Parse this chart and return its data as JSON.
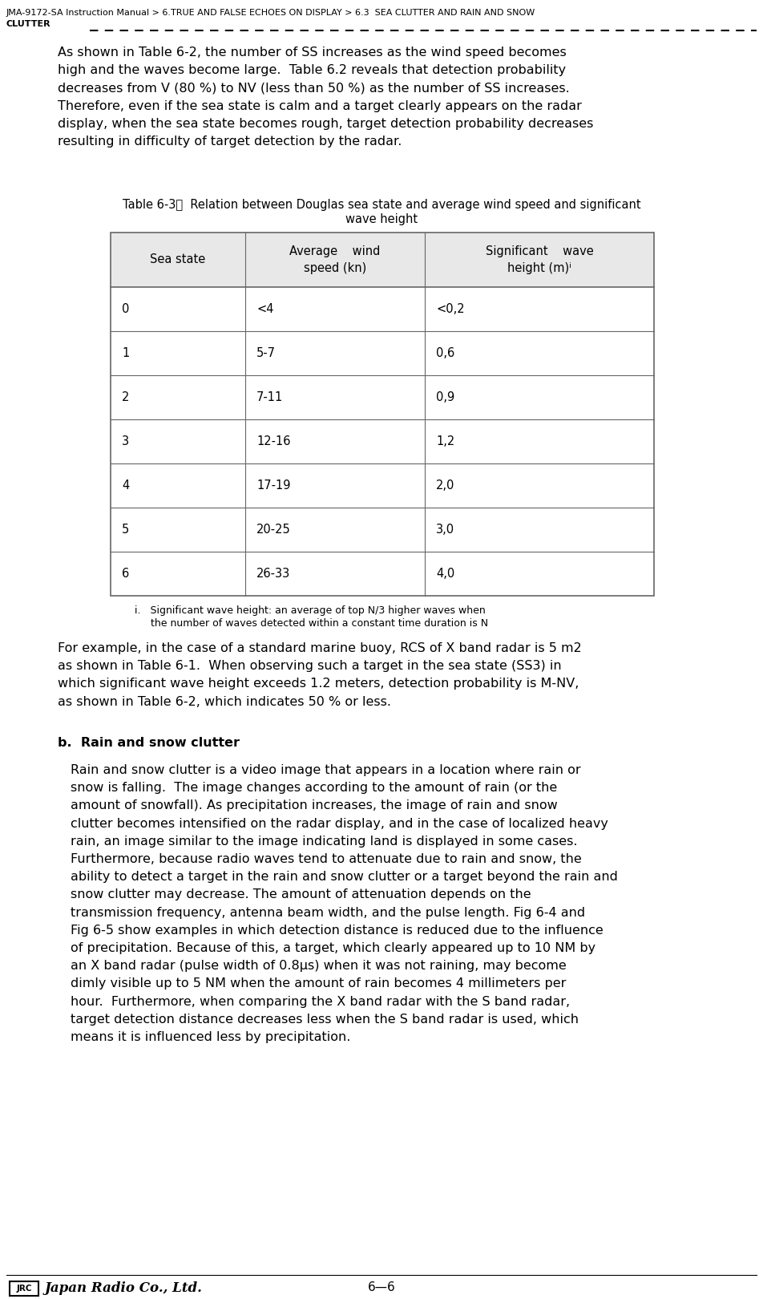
{
  "page_title_line1": "JMA-9172-SA Instruction Manual > 6.TRUE AND FALSE ECHOES ON DISPLAY > 6.3  SEA CLUTTER AND RAIN AND SNOW",
  "page_title_line2": "CLUTTER",
  "para1": "As shown in Table 6-2, the number of SS increases as the wind speed becomes\nhigh and the waves become large.  Table 6.2 reveals that detection probability\ndecreases from V (80 %) to NV (less than 50 %) as the number of SS increases.\nTherefore, even if the sea state is calm and a target clearly appears on the radar\ndisplay, when the sea state becomes rough, target detection probability decreases\nresulting in difficulty of target detection by the radar.",
  "table_title_line1": "Table 6-3：  Relation between Douglas sea state and average wind speed and significant",
  "table_title_line2": "wave height",
  "table_col0_header": "Sea state",
  "table_col1_header": "Average    wind\nspeed (kn)",
  "table_col2_header": "Significant    wave\nheight (m)ⁱ",
  "table_rows": [
    [
      "0",
      "<4",
      "<0,2"
    ],
    [
      "1",
      "5-7",
      "0,6"
    ],
    [
      "2",
      "7-11",
      "0,9"
    ],
    [
      "3",
      "12-16",
      "1,2"
    ],
    [
      "4",
      "17-19",
      "2,0"
    ],
    [
      "5",
      "20-25",
      "3,0"
    ],
    [
      "6",
      "26-33",
      "4,0"
    ]
  ],
  "table_footnote_line1": "i.   Significant wave height: an average of top N/3 higher waves when",
  "table_footnote_line2": "     the number of waves detected within a constant time duration is N",
  "para2": "For example, in the case of a standard marine buoy, RCS of X band radar is 5 m2\nas shown in Table 6-1.  When observing such a target in the sea state (SS3) in\nwhich significant wave height exceeds 1.2 meters, detection probability is M-NV,\nas shown in Table 6-2, which indicates 50 % or less.",
  "section_b_bold": "b.  Rain and snow clutter",
  "para3_line1": "Rain and snow clutter is a video image that appears in a location where rain or",
  "para3_line2": "snow is falling.  The image changes according to the amount of rain (or the",
  "para3_line3": "amount of snowfall). As precipitation increases, the image of rain and snow",
  "para3_line4": "clutter becomes intensified on the radar display, and in the case of localized heavy",
  "para3_line5": "rain, an image similar to the image indicating land is displayed in some cases.",
  "para3_line6": "Furthermore, because radio waves tend to attenuate due to rain and snow, the",
  "para3_line7": "ability to detect a target in the rain and snow clutter or a target beyond the rain and",
  "para3_line8": "snow clutter may decrease. The amount of attenuation depends on the",
  "para3_line9": "transmission frequency, antenna beam width, and the pulse length. Fig 6-4 and",
  "para3_line10": "Fig 6-5 show examples in which detection distance is reduced due to the influence",
  "para3_line11": "of precipitation. Because of this, a target, which clearly appeared up to 10 NM by",
  "para3_line12": "an X band radar (pulse width of 0.8μs) when it was not raining, may become",
  "para3_line13": "dimly visible up to 5 NM when the amount of rain becomes 4 millimeters per",
  "para3_line14": "hour.  Furthermore, when comparing the X band radar with the S band radar,",
  "para3_line15": "target detection distance decreases less when the S band radar is used, which",
  "para3_line16": "means it is influenced less by precipitation.",
  "footer_page": "6—6",
  "bg_color": "#ffffff",
  "text_color": "#000000",
  "header_bg": "#e8e8e8",
  "table_border_color": "#666666",
  "header_font_size": 8.0,
  "body_font_size": 11.5,
  "table_font_size": 10.5,
  "footnote_font_size": 9.0,
  "table_title_font_size": 10.5,
  "section_font_size": 11.5
}
